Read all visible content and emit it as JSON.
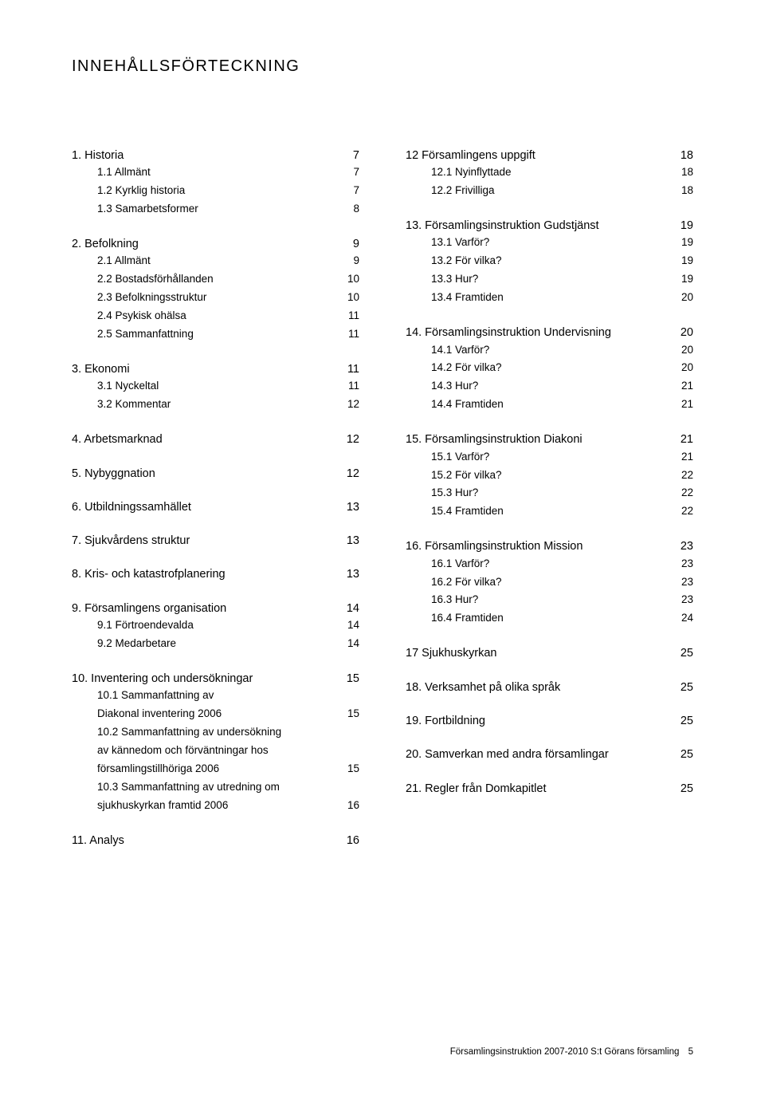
{
  "title": "INNEHÅLLSFÖRTECKNING",
  "footer": {
    "text": "Församlingsinstruktion 2007-2010  S:t Görans församling",
    "page": "5"
  },
  "left": [
    {
      "type": "section",
      "label": "1. Historia",
      "page": "7"
    },
    {
      "type": "sub",
      "label": "1.1 Allmänt",
      "page": "7"
    },
    {
      "type": "sub",
      "label": "1.2 Kyrklig historia",
      "page": "7"
    },
    {
      "type": "sub",
      "label": "1.3 Samarbetsformer",
      "page": "8"
    },
    {
      "type": "section",
      "label": "2. Befolkning",
      "page": "9"
    },
    {
      "type": "sub",
      "label": "2.1 Allmänt",
      "page": "9"
    },
    {
      "type": "sub",
      "label": "2.2 Bostadsförhållanden",
      "page": "10"
    },
    {
      "type": "sub",
      "label": "2.3 Befolkningsstruktur",
      "page": "10"
    },
    {
      "type": "sub",
      "label": "2.4 Psykisk ohälsa",
      "page": "11"
    },
    {
      "type": "sub",
      "label": "2.5 Sammanfattning",
      "page": "11"
    },
    {
      "type": "section",
      "label": "3. Ekonomi",
      "page": "11"
    },
    {
      "type": "sub",
      "label": "3.1 Nyckeltal",
      "page": "11"
    },
    {
      "type": "sub",
      "label": "3.2 Kommentar",
      "page": "12"
    },
    {
      "type": "section",
      "label": "4. Arbetsmarknad",
      "page": "12"
    },
    {
      "type": "section",
      "label": "5. Nybyggnation",
      "page": "12"
    },
    {
      "type": "section",
      "label": "6. Utbildningssamhället",
      "page": "13"
    },
    {
      "type": "section",
      "label": "7. Sjukvårdens struktur",
      "page": "13"
    },
    {
      "type": "section",
      "label": "8. Kris- och katastrofplanering",
      "page": "13"
    },
    {
      "type": "section",
      "label": "9. Församlingens organisation",
      "page": "14"
    },
    {
      "type": "sub",
      "label": "9.1 Förtroendevalda",
      "page": "14"
    },
    {
      "type": "sub",
      "label": "9.2 Medarbetare",
      "page": "14"
    },
    {
      "type": "section",
      "label": "10. Inventering och undersökningar",
      "page": "15"
    },
    {
      "type": "multi",
      "lines": [
        "10.1 Sammanfattning av",
        "Diakonal inventering 2006"
      ],
      "page": "15"
    },
    {
      "type": "multi",
      "lines": [
        "10.2 Sammanfattning av undersökning",
        "av kännedom och förväntningar hos",
        "församlingstillhöriga 2006"
      ],
      "page": "15"
    },
    {
      "type": "multi",
      "lines": [
        "10.3 Sammanfattning av utredning om",
        "sjukhuskyrkan framtid 2006"
      ],
      "page": "16"
    },
    {
      "type": "section",
      "label": "11. Analys",
      "page": "16"
    }
  ],
  "right": [
    {
      "type": "section",
      "label": "12 Församlingens uppgift",
      "page": "18"
    },
    {
      "type": "sub",
      "label": "12.1 Nyinflyttade",
      "page": "18"
    },
    {
      "type": "sub",
      "label": "12.2 Frivilliga",
      "page": "18"
    },
    {
      "type": "section",
      "label": "13. Församlingsinstruktion Gudstjänst",
      "page": "19"
    },
    {
      "type": "sub",
      "label": "13.1 Varför?",
      "page": "19"
    },
    {
      "type": "sub",
      "label": "13.2 För vilka?",
      "page": "19"
    },
    {
      "type": "sub",
      "label": "13.3 Hur?",
      "page": "19"
    },
    {
      "type": "sub",
      "label": "13.4 Framtiden",
      "page": "20"
    },
    {
      "type": "section",
      "label": "14. Församlingsinstruktion Undervisning",
      "page": "20"
    },
    {
      "type": "sub",
      "label": "14.1 Varför?",
      "page": "20"
    },
    {
      "type": "sub",
      "label": "14.2 För vilka?",
      "page": "20"
    },
    {
      "type": "sub",
      "label": "14.3 Hur?",
      "page": "21"
    },
    {
      "type": "sub",
      "label": "14.4 Framtiden",
      "page": "21"
    },
    {
      "type": "section",
      "label": "15. Församlingsinstruktion Diakoni",
      "page": "21"
    },
    {
      "type": "sub",
      "label": "15.1 Varför?",
      "page": "21"
    },
    {
      "type": "sub",
      "label": "15.2 För vilka?",
      "page": "22"
    },
    {
      "type": "sub",
      "label": "15.3 Hur?",
      "page": "22"
    },
    {
      "type": "sub",
      "label": "15.4 Framtiden",
      "page": "22"
    },
    {
      "type": "section",
      "label": "16. Församlingsinstruktion Mission",
      "page": "23"
    },
    {
      "type": "sub",
      "label": "16.1 Varför?",
      "page": "23"
    },
    {
      "type": "sub",
      "label": "16.2 För vilka?",
      "page": "23"
    },
    {
      "type": "sub",
      "label": "16.3 Hur?",
      "page": "23"
    },
    {
      "type": "sub",
      "label": "16.4 Framtiden",
      "page": "24"
    },
    {
      "type": "section",
      "label": "17 Sjukhuskyrkan",
      "page": "25"
    },
    {
      "type": "section",
      "label": "18. Verksamhet på olika språk",
      "page": "25"
    },
    {
      "type": "section",
      "label": "19. Fortbildning",
      "page": "25"
    },
    {
      "type": "section",
      "label": "20. Samverkan med andra församlingar",
      "page": "25"
    },
    {
      "type": "section",
      "label": "21. Regler från Domkapitlet",
      "page": "25"
    }
  ]
}
